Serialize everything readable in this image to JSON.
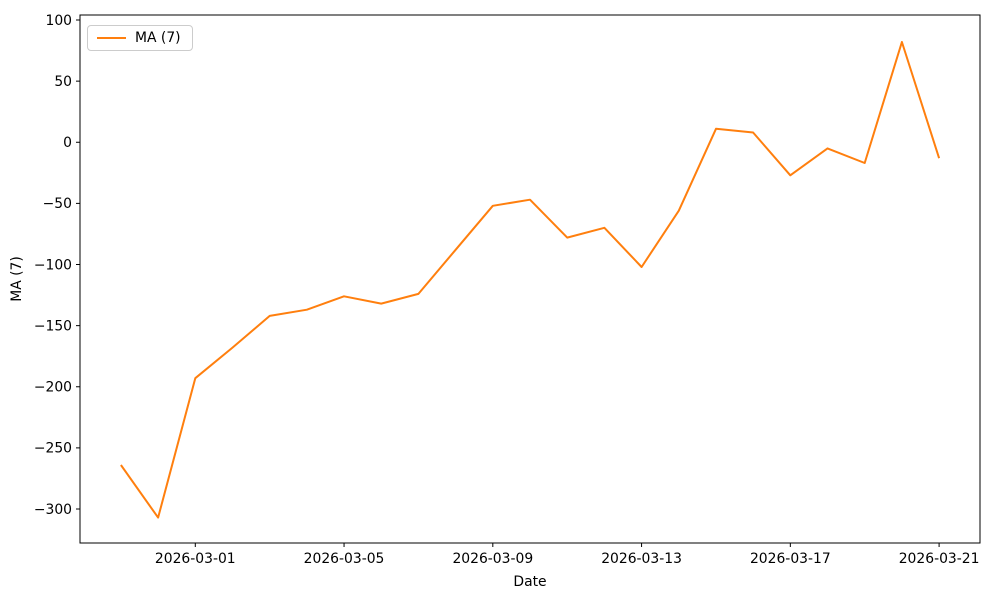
{
  "figure": {
    "background": "#ffffff",
    "text_color": "#000000",
    "spine_color": "#000000"
  },
  "chart_data": {
    "type": "line",
    "title": "",
    "xlabel": "Date",
    "ylabel": "MA (7)",
    "grid": false,
    "legend_position": "upper left",
    "legend": [
      {
        "label": "MA (7)",
        "color": "#ff7f0e"
      }
    ],
    "x": [
      "2026-02-27",
      "2026-02-28",
      "2026-03-01",
      "2026-03-02",
      "2026-03-03",
      "2026-03-04",
      "2026-03-05",
      "2026-03-06",
      "2026-03-07",
      "2026-03-08",
      "2026-03-09",
      "2026-03-10",
      "2026-03-11",
      "2026-03-12",
      "2026-03-13",
      "2026-03-14",
      "2026-03-15",
      "2026-03-16",
      "2026-03-17",
      "2026-03-18",
      "2026-03-19",
      "2026-03-20",
      "2026-03-21"
    ],
    "series": [
      {
        "name": "MA (7)",
        "color": "#ff7f0e",
        "values": [
          -264,
          -307,
          -193,
          -168,
          -142,
          -137,
          -126,
          -132,
          -124,
          -88,
          -52,
          -47,
          -78,
          -70,
          -102,
          -56,
          11,
          8,
          -27,
          -5,
          -17,
          82,
          -13
        ]
      }
    ],
    "xticks": [
      "2026-03-01",
      "2026-03-05",
      "2026-03-09",
      "2026-03-13",
      "2026-03-17",
      "2026-03-21"
    ],
    "yticks": [
      {
        "value": 100,
        "label": "100"
      },
      {
        "value": 50,
        "label": "50"
      },
      {
        "value": 0,
        "label": "0"
      },
      {
        "value": -50,
        "label": "−50"
      },
      {
        "value": -100,
        "label": "−100"
      },
      {
        "value": -150,
        "label": "−150"
      },
      {
        "value": -200,
        "label": "−200"
      },
      {
        "value": -250,
        "label": "−250"
      },
      {
        "value": -300,
        "label": "−300"
      }
    ],
    "ylim": [
      -327.8,
      104.1
    ],
    "x_margin_days": 1.1
  }
}
